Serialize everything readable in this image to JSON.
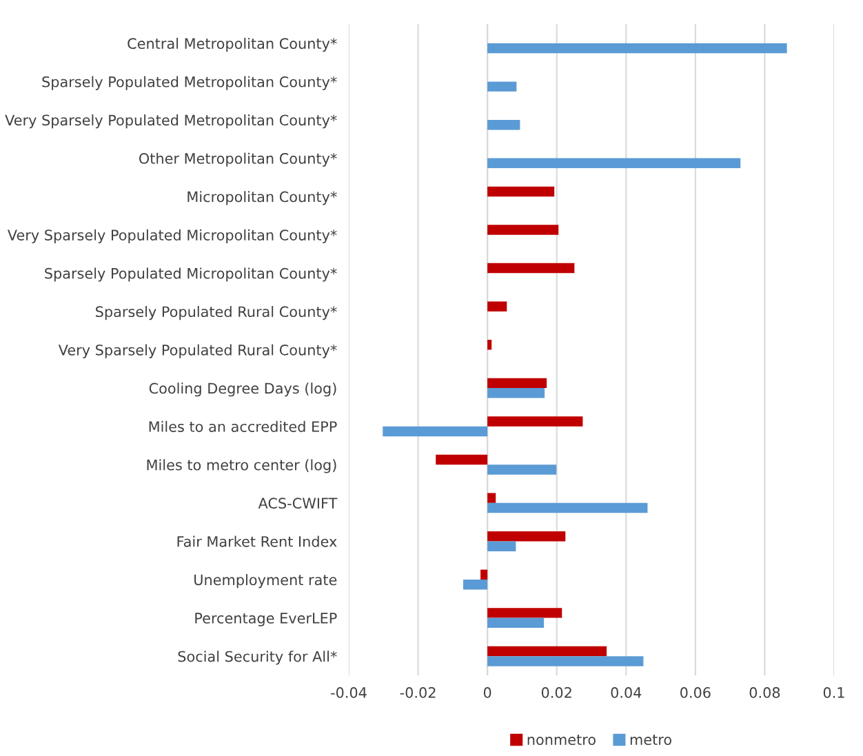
{
  "chart_data": {
    "type": "bar",
    "orientation": "horizontal",
    "categories": [
      "Central Metropolitan County*",
      "Sparsely Populated Metropolitan County*",
      "Very Sparsely Populated Metropolitan County*",
      "Other Metropolitan County*",
      "Micropolitan County*",
      "Very Sparsely Populated Micropolitan County*",
      "Sparsely Populated Micropolitan County*",
      "Sparsely Populated Rural County*",
      "Very Sparsely Populated Rural County*",
      "Cooling Degree Days (log)",
      "Miles to an accredited EPP",
      "Miles to metro center (log)",
      "ACS-CWIFT",
      "Fair Market Rent Index",
      "Unemployment rate",
      "Percentage EverLEP",
      "Social Security for All*"
    ],
    "series": [
      {
        "name": "nonmetro",
        "color": "#c00000",
        "values": [
          null,
          null,
          null,
          null,
          0.0193,
          0.0205,
          0.0251,
          0.0056,
          0.0012,
          0.0171,
          0.0275,
          -0.0149,
          0.0024,
          0.0225,
          -0.002,
          0.0215,
          0.0344
        ]
      },
      {
        "name": "metro",
        "color": "#5b9bd5",
        "values": [
          0.0864,
          0.0084,
          0.0094,
          0.073,
          null,
          null,
          null,
          null,
          null,
          0.0165,
          -0.0302,
          0.0199,
          0.0462,
          0.0082,
          -0.007,
          0.0163,
          0.045
        ]
      }
    ],
    "xlim": [
      -0.04,
      0.1
    ],
    "xticks": [
      -0.04,
      -0.02,
      0,
      0.02,
      0.04,
      0.06,
      0.08,
      0.1
    ],
    "grid": "x",
    "legend": "bottom"
  }
}
